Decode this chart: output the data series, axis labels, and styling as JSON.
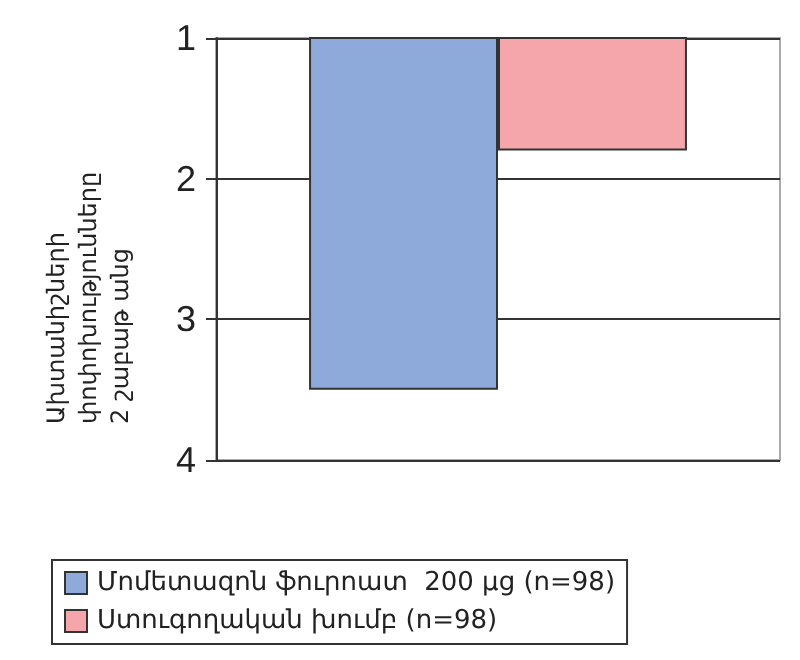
{
  "chart_data": {
    "type": "bar",
    "ylabel": "Ախտանիշների փոփոխությունները 2 շաբաթ անց",
    "categories": [
      null
    ],
    "series": [
      {
        "name": "Մոմետազոն ֆուրոատ  200 µg (n=98)",
        "color": "#8eaadb",
        "values": [
          3.5
        ]
      },
      {
        "name": "Ստուգողական խումբ (n=98)",
        "color": "#f4a6aa",
        "values": [
          1.8
        ]
      }
    ],
    "ylim": [
      4,
      1
    ],
    "yticks": [
      1,
      2,
      3,
      4
    ],
    "grid": "y",
    "legend": "bottom"
  }
}
